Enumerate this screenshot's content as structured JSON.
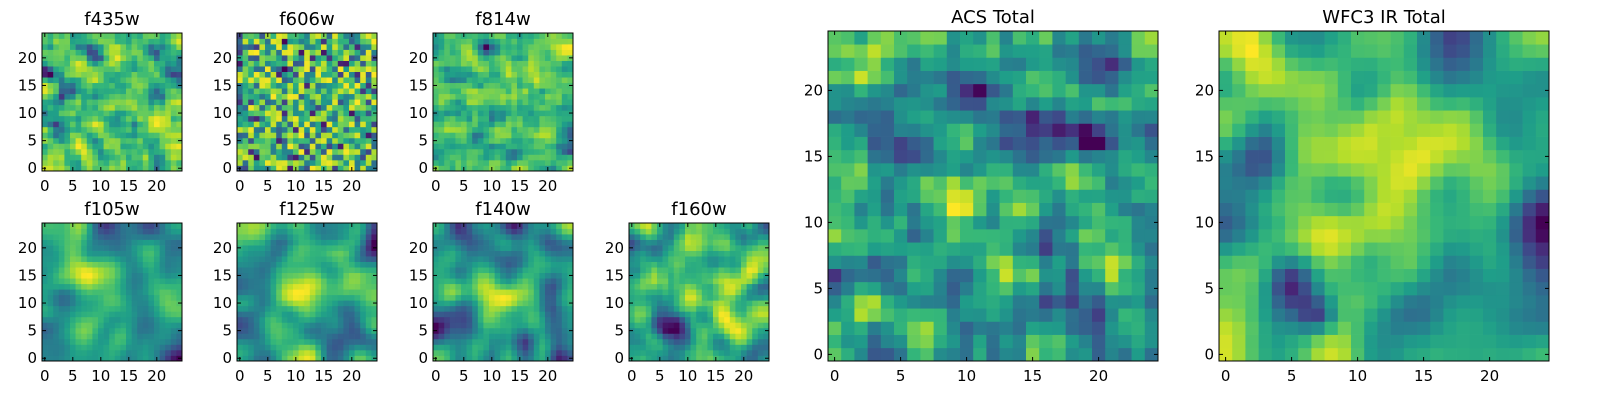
{
  "chart_data": [
    {
      "type": "heatmap",
      "title": "f435w",
      "grid_size": 25,
      "colormap": "viridis",
      "xlim": [
        0,
        24
      ],
      "ylim": [
        0,
        24
      ],
      "xticks": [
        0,
        5,
        10,
        15,
        20
      ],
      "yticks": [
        0,
        5,
        10,
        15,
        20
      ],
      "grid": false,
      "smoothness": 0.6,
      "seed": 11,
      "hot_spots": [],
      "dark_spots": []
    },
    {
      "type": "heatmap",
      "title": "f606w",
      "grid_size": 25,
      "colormap": "viridis",
      "xlim": [
        0,
        24
      ],
      "ylim": [
        0,
        24
      ],
      "xticks": [
        0,
        5,
        10,
        15,
        20
      ],
      "yticks": [
        0,
        5,
        10,
        15,
        20
      ],
      "grid": false,
      "smoothness": 0.4,
      "seed": 23,
      "hot_spots": [],
      "dark_spots": []
    },
    {
      "type": "heatmap",
      "title": "f814w",
      "grid_size": 25,
      "colormap": "viridis",
      "xlim": [
        0,
        24
      ],
      "ylim": [
        0,
        24
      ],
      "xticks": [
        0,
        5,
        10,
        15,
        20
      ],
      "yticks": [
        0,
        5,
        10,
        15,
        20
      ],
      "grid": false,
      "smoothness": 0.5,
      "seed": 37,
      "hot_spots": [],
      "dark_spots": []
    },
    {
      "type": "heatmap",
      "title": "f105w",
      "grid_size": 25,
      "colormap": "viridis",
      "xlim": [
        0,
        24
      ],
      "ylim": [
        0,
        24
      ],
      "xticks": [
        0,
        5,
        10,
        15,
        20
      ],
      "yticks": [
        0,
        5,
        10,
        15,
        20
      ],
      "grid": false,
      "smoothness": 3,
      "seed": 41,
      "hot_spots": [
        [
          11,
          13,
          4,
          0.3
        ]
      ],
      "dark_spots": []
    },
    {
      "type": "heatmap",
      "title": "f125w",
      "grid_size": 25,
      "colormap": "viridis",
      "xlim": [
        0,
        24
      ],
      "ylim": [
        0,
        24
      ],
      "xticks": [
        0,
        5,
        10,
        15,
        20
      ],
      "yticks": [
        0,
        5,
        10,
        15,
        20
      ],
      "grid": false,
      "smoothness": 3,
      "seed": 53,
      "hot_spots": [
        [
          12,
          12,
          4,
          0.3
        ]
      ],
      "dark_spots": []
    },
    {
      "type": "heatmap",
      "title": "f140w",
      "grid_size": 25,
      "colormap": "viridis",
      "xlim": [
        0,
        24
      ],
      "ylim": [
        0,
        24
      ],
      "xticks": [
        0,
        5,
        10,
        15,
        20
      ],
      "yticks": [
        0,
        5,
        10,
        15,
        20
      ],
      "grid": false,
      "smoothness": 3,
      "seed": 67,
      "hot_spots": [
        [
          12,
          11,
          4,
          0.3
        ]
      ],
      "dark_spots": []
    },
    {
      "type": "heatmap",
      "title": "f160w",
      "grid_size": 25,
      "colormap": "viridis",
      "xlim": [
        0,
        24
      ],
      "ylim": [
        0,
        24
      ],
      "xticks": [
        0,
        5,
        10,
        15,
        20
      ],
      "yticks": [
        0,
        5,
        10,
        15,
        20
      ],
      "grid": false,
      "smoothness": 2,
      "seed": 79,
      "hot_spots": [
        [
          13,
          12,
          3,
          0.3
        ]
      ],
      "dark_spots": [
        [
          6,
          6,
          2,
          0.4
        ]
      ]
    },
    {
      "type": "heatmap",
      "title": "ACS Total",
      "grid_size": 25,
      "colormap": "viridis",
      "xlim": [
        0,
        24
      ],
      "ylim": [
        0,
        24
      ],
      "xticks": [
        0,
        5,
        10,
        15,
        20
      ],
      "yticks": [
        0,
        5,
        10,
        15,
        20
      ],
      "grid": false,
      "smoothness": 1.2,
      "seed": 97,
      "hot_spots": [
        [
          1,
          23,
          2,
          0.4
        ],
        [
          12,
          12,
          3,
          0.2
        ]
      ],
      "dark_spots": []
    },
    {
      "type": "heatmap",
      "title": "WFC3 IR Total",
      "grid_size": 25,
      "colormap": "viridis",
      "xlim": [
        0,
        24
      ],
      "ylim": [
        0,
        24
      ],
      "xticks": [
        0,
        5,
        10,
        15,
        20
      ],
      "yticks": [
        0,
        5,
        10,
        15,
        20
      ],
      "grid": false,
      "smoothness": 2.5,
      "seed": 113,
      "hot_spots": [
        [
          12,
          12,
          3,
          0.45
        ],
        [
          2,
          22,
          2,
          0.3
        ]
      ],
      "dark_spots": [
        [
          5,
          6,
          1.5,
          0.6
        ],
        [
          7,
          3,
          1,
          0.5
        ]
      ]
    }
  ]
}
